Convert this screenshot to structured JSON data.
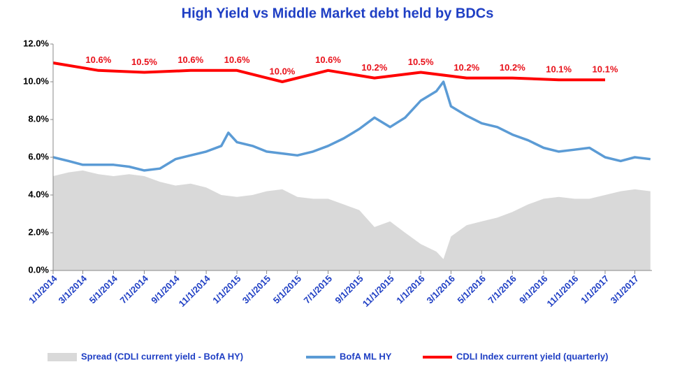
{
  "chart_data": {
    "type": "line",
    "title": "High Yield  vs  Middle Market debt held by BDCs",
    "xlim": [
      "1/1/2014",
      "4/4/2017"
    ],
    "xticks": [
      "1/1/2014",
      "3/1/2014",
      "5/1/2014",
      "7/1/2014",
      "9/1/2014",
      "11/1/2014",
      "1/1/2015",
      "3/1/2015",
      "5/1/2015",
      "7/1/2015",
      "9/1/2015",
      "11/1/2015",
      "1/1/2016",
      "3/1/2016",
      "5/1/2016",
      "7/1/2016",
      "9/1/2016",
      "11/1/2016",
      "1/1/2017",
      "3/1/2017"
    ],
    "ylim": [
      0,
      12
    ],
    "yticks": [
      {
        "value": 0,
        "label": "0.0%"
      },
      {
        "value": 2,
        "label": "2.0%"
      },
      {
        "value": 4,
        "label": "4.0%"
      },
      {
        "value": 6,
        "label": "6.0%"
      },
      {
        "value": 8,
        "label": "8.0%"
      },
      {
        "value": 10,
        "label": "10.0%"
      },
      {
        "value": 12,
        "label": "12.0%"
      }
    ],
    "series": [
      {
        "name": "Spread (CDLI current yield - BofA HY)",
        "type": "area",
        "color": "#d9d9d9",
        "x": [
          "1/1/2014",
          "2/1/2014",
          "3/1/2014",
          "4/1/2014",
          "5/1/2014",
          "6/1/2014",
          "7/1/2014",
          "8/1/2014",
          "9/1/2014",
          "10/1/2014",
          "11/1/2014",
          "12/1/2014",
          "1/1/2015",
          "2/1/2015",
          "3/1/2015",
          "4/1/2015",
          "5/1/2015",
          "6/1/2015",
          "7/1/2015",
          "8/1/2015",
          "9/1/2015",
          "10/1/2015",
          "11/1/2015",
          "12/1/2015",
          "1/1/2016",
          "2/1/2016",
          "2/15/2016",
          "3/1/2016",
          "4/1/2016",
          "5/1/2016",
          "6/1/2016",
          "7/1/2016",
          "8/1/2016",
          "9/1/2016",
          "10/1/2016",
          "11/1/2016",
          "12/1/2016",
          "1/1/2017",
          "2/1/2017",
          "3/1/2017",
          "4/1/2017"
        ],
        "values": [
          5.0,
          5.2,
          5.3,
          5.1,
          5.0,
          5.1,
          5.0,
          4.7,
          4.5,
          4.6,
          4.4,
          4.0,
          3.9,
          4.0,
          4.2,
          4.3,
          3.9,
          3.8,
          3.8,
          3.5,
          3.2,
          2.3,
          2.6,
          2.0,
          1.4,
          1.0,
          0.6,
          1.8,
          2.4,
          2.6,
          2.8,
          3.1,
          3.5,
          3.8,
          3.9,
          3.8,
          3.8,
          4.0,
          4.2,
          4.3,
          4.2
        ]
      },
      {
        "name": "BofA ML HY",
        "type": "line",
        "color": "#5b9bd5",
        "x": [
          "1/1/2014",
          "2/1/2014",
          "3/1/2014",
          "4/1/2014",
          "5/1/2014",
          "6/1/2014",
          "7/1/2014",
          "8/1/2014",
          "9/1/2014",
          "10/1/2014",
          "11/1/2014",
          "12/1/2014",
          "12/15/2014",
          "1/1/2015",
          "2/1/2015",
          "3/1/2015",
          "4/1/2015",
          "5/1/2015",
          "6/1/2015",
          "7/1/2015",
          "8/1/2015",
          "9/1/2015",
          "10/1/2015",
          "11/1/2015",
          "12/1/2015",
          "1/1/2016",
          "2/1/2016",
          "2/15/2016",
          "3/1/2016",
          "4/1/2016",
          "5/1/2016",
          "6/1/2016",
          "7/1/2016",
          "8/1/2016",
          "9/1/2016",
          "10/1/2016",
          "11/1/2016",
          "12/1/2016",
          "1/1/2017",
          "2/1/2017",
          "3/1/2017",
          "4/1/2017"
        ],
        "values": [
          6.0,
          5.8,
          5.6,
          5.6,
          5.6,
          5.5,
          5.3,
          5.4,
          5.9,
          6.1,
          6.3,
          6.6,
          7.3,
          6.8,
          6.6,
          6.3,
          6.2,
          6.1,
          6.3,
          6.6,
          7.0,
          7.5,
          8.1,
          7.6,
          8.1,
          9.0,
          9.5,
          10.0,
          8.7,
          8.2,
          7.8,
          7.6,
          7.2,
          6.9,
          6.5,
          6.3,
          6.4,
          6.5,
          6.0,
          5.8,
          6.0,
          5.9
        ]
      },
      {
        "name": "CDLI Index current yield (quarterly)",
        "type": "line",
        "color": "#ff0000",
        "x": [
          "1/1/2014",
          "4/1/2014",
          "7/1/2014",
          "10/1/2014",
          "1/1/2015",
          "4/1/2015",
          "7/1/2015",
          "10/1/2015",
          "1/1/2016",
          "4/1/2016",
          "7/1/2016",
          "10/1/2016",
          "1/1/2017"
        ],
        "values": [
          11.0,
          10.6,
          10.5,
          10.6,
          10.6,
          10.0,
          10.6,
          10.2,
          10.5,
          10.2,
          10.2,
          10.1,
          10.1
        ],
        "value_labels": [
          null,
          "10.6%",
          "10.5%",
          "10.6%",
          "10.6%",
          "10.0%",
          "10.6%",
          "10.2%",
          "10.5%",
          "10.2%",
          "10.2%",
          "10.1%",
          "10.1%"
        ]
      }
    ]
  }
}
